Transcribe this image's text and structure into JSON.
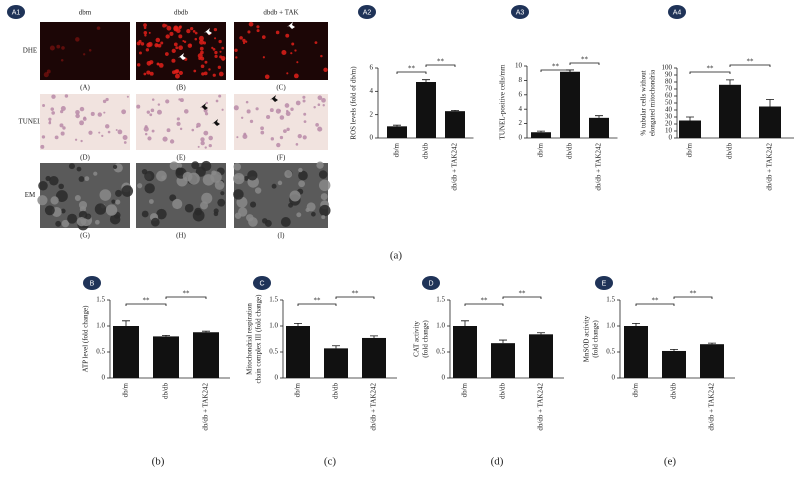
{
  "panel_a": {
    "label": "A1",
    "columns": [
      "dbm",
      "dbdb",
      "dbdb + TAK"
    ],
    "rows": [
      "DHE",
      "TUNEL",
      "EM"
    ],
    "image_labels": [
      "(A)",
      "(B)",
      "(C)",
      "(D)",
      "(E)",
      "(F)",
      "(G)",
      "(H)",
      "(I)"
    ]
  },
  "captions": [
    "(a)",
    "(b)",
    "(c)",
    "(d)",
    "(e)"
  ],
  "chart_data": [
    {
      "type": "bar",
      "panel": "A2",
      "ylabel": [
        "ROS levels (fold of db/m)"
      ],
      "categories": [
        "db/m",
        "db/db",
        "db/db + TAK242"
      ],
      "values": [
        1.0,
        4.8,
        2.3
      ],
      "errors": [
        0.1,
        0.2,
        0.07
      ],
      "color": "#111111",
      "ylim": [
        0,
        6
      ],
      "yticks": [
        0,
        2,
        4,
        6
      ],
      "annotations": [
        "**",
        "**"
      ]
    },
    {
      "type": "bar",
      "panel": "A3",
      "ylabel": [
        "TUNEL-positive cells/mm"
      ],
      "categories": [
        "db/m",
        "db/db",
        "db/db + TAK242"
      ],
      "values": [
        0.8,
        9.2,
        2.8
      ],
      "errors": [
        0.15,
        0.25,
        0.3
      ],
      "color": "#111111",
      "ylim": [
        0,
        10
      ],
      "yticks": [
        0,
        2,
        4,
        6,
        8,
        10
      ],
      "annotations": [
        "**",
        "**"
      ]
    },
    {
      "type": "bar",
      "panel": "A4",
      "ylabel": [
        "% tubular cells without",
        "elongated mitochondria"
      ],
      "categories": [
        "db/m",
        "db/db",
        "db/db + TAK242"
      ],
      "values": [
        25,
        76,
        45
      ],
      "errors": [
        5,
        7,
        10
      ],
      "color": "#111111",
      "ylim": [
        0,
        100
      ],
      "yticks": [
        0,
        10,
        20,
        30,
        40,
        50,
        60,
        70,
        80,
        90,
        100
      ],
      "annotations": [
        "**",
        "**"
      ]
    },
    {
      "type": "bar",
      "panel": "B",
      "ylabel": [
        "ATP level (fold change)"
      ],
      "categories": [
        "db/m",
        "db/db",
        "db/db + TAK242"
      ],
      "values": [
        1.0,
        0.8,
        0.88
      ],
      "errors": [
        0.1,
        0.02,
        0.02
      ],
      "color": "#111111",
      "ylim": [
        0,
        1.5
      ],
      "yticks": [
        0,
        0.5,
        {
          "value": 1,
          "label": "1.0"
        },
        1.5
      ],
      "annotations": [
        "**",
        "**"
      ]
    },
    {
      "type": "bar",
      "panel": "C",
      "ylabel": [
        "Mitochondrial respiration",
        "chain complex III (fold change)"
      ],
      "categories": [
        "db/m",
        "db/db",
        "db/db + TAK242"
      ],
      "values": [
        1.0,
        0.57,
        0.77
      ],
      "errors": [
        0.05,
        0.05,
        0.04
      ],
      "color": "#111111",
      "ylim": [
        0,
        1.5
      ],
      "yticks": [
        0,
        0.5,
        {
          "value": 1,
          "label": "1.0"
        },
        1.5
      ],
      "annotations": [
        "**",
        "**"
      ]
    },
    {
      "type": "bar",
      "panel": "D",
      "ylabel": [
        "CAT activity",
        "(fold change)"
      ],
      "categories": [
        "db/m",
        "db/db",
        "db/db + TAK242"
      ],
      "values": [
        1.0,
        0.67,
        0.84
      ],
      "errors": [
        0.1,
        0.06,
        0.03
      ],
      "color": "#111111",
      "ylim": [
        0,
        1.5
      ],
      "yticks": [
        0,
        0.5,
        {
          "value": 1,
          "label": "1.0"
        },
        1.5
      ],
      "annotations": [
        "**",
        "**"
      ]
    },
    {
      "type": "bar",
      "panel": "E",
      "ylabel": [
        "MnSOD activity",
        "(fold change)"
      ],
      "categories": [
        "db/m",
        "db/db",
        "db/db + TAK242"
      ],
      "values": [
        1.0,
        0.52,
        0.65
      ],
      "errors": [
        0.05,
        0.03,
        0.02
      ],
      "color": "#111111",
      "ylim": [
        0,
        1.5
      ],
      "yticks": [
        0,
        0.5,
        {
          "value": 1,
          "label": "1.0"
        },
        1.5
      ],
      "annotations": [
        "**",
        "**"
      ]
    }
  ]
}
